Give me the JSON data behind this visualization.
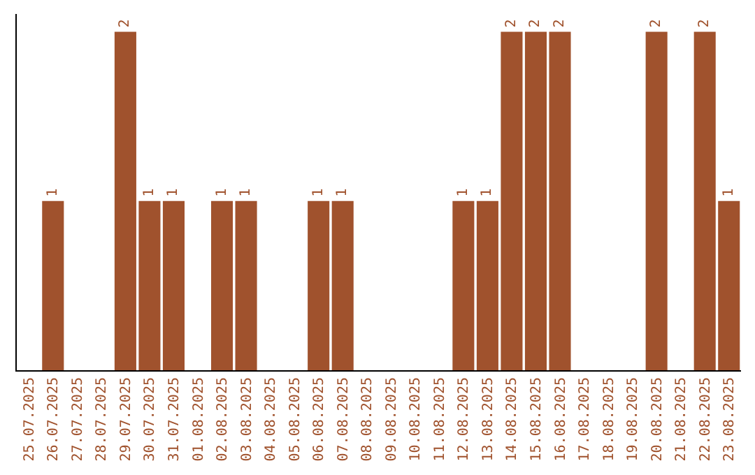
{
  "chart_data": {
    "type": "bar",
    "categories": [
      "25.07.2025",
      "26.07.2025",
      "27.07.2025",
      "28.07.2025",
      "29.07.2025",
      "30.07.2025",
      "31.07.2025",
      "01.08.2025",
      "02.08.2025",
      "03.08.2025",
      "04.08.2025",
      "05.08.2025",
      "06.08.2025",
      "07.08.2025",
      "08.08.2025",
      "09.08.2025",
      "10.08.2025",
      "11.08.2025",
      "12.08.2025",
      "13.08.2025",
      "14.08.2025",
      "15.08.2025",
      "16.08.2025",
      "17.08.2025",
      "18.08.2025",
      "19.08.2025",
      "20.08.2025",
      "21.08.2025",
      "22.08.2025",
      "23.08.2025"
    ],
    "values": [
      0,
      1,
      0,
      0,
      2,
      1,
      1,
      0,
      1,
      1,
      0,
      0,
      1,
      1,
      0,
      0,
      0,
      0,
      1,
      1,
      2,
      2,
      2,
      0,
      0,
      0,
      2,
      0,
      2,
      1
    ],
    "value_labels": [
      null,
      "1",
      null,
      null,
      "2",
      "1",
      "1",
      null,
      "1",
      "1",
      null,
      null,
      "1",
      "1",
      null,
      null,
      null,
      null,
      "1",
      "1",
      "2",
      "2",
      "2",
      null,
      null,
      null,
      "2",
      null,
      "2",
      "1"
    ],
    "color": "#a0522d",
    "tick_labels": "x"
  }
}
